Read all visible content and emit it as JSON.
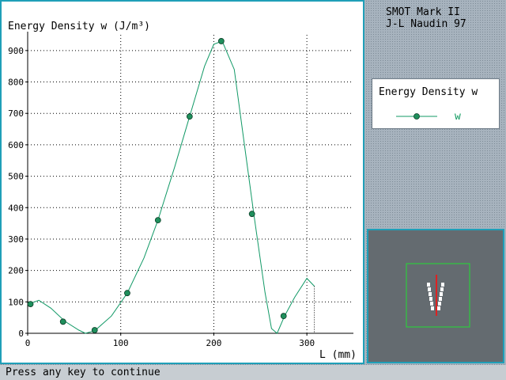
{
  "window": {
    "header_line1": "SMOT Mark II",
    "header_line2": "J-L Naudin 97",
    "status_text": "Press any key to continue"
  },
  "legend": {
    "title": "Energy Density w",
    "series_label": "w"
  },
  "colors": {
    "series": "#119966",
    "marker_fill": "#1f8f5c",
    "panel_border": "#1f9fb8",
    "mini_box": "#22dd33",
    "needle": "#dd2222"
  },
  "chart_data": {
    "type": "line",
    "title": "Energy Density w (J/m³)",
    "xlabel": "L (mm)",
    "ylabel": "",
    "xlim": [
      0,
      350
    ],
    "ylim": [
      0,
      950
    ],
    "x_ticks": [
      0,
      100,
      200,
      300
    ],
    "y_ticks": [
      0,
      100,
      200,
      300,
      400,
      500,
      600,
      700,
      800,
      900
    ],
    "grid": true,
    "line": {
      "x": [
        0,
        12,
        25,
        40,
        55,
        62,
        72,
        90,
        107,
        125,
        140,
        158,
        174,
        190,
        200,
        209,
        222,
        232,
        243,
        255,
        262,
        268,
        276,
        287,
        300,
        308
      ],
      "y": [
        92,
        105,
        80,
        38,
        10,
        0,
        8,
        55,
        128,
        240,
        360,
        530,
        690,
        850,
        920,
        930,
        840,
        620,
        380,
        130,
        15,
        0,
        55,
        115,
        175,
        150
      ]
    },
    "markers": {
      "x": [
        3,
        38,
        72,
        107,
        140,
        174,
        208,
        241,
        275
      ],
      "y": [
        93,
        37,
        10,
        128,
        360,
        690,
        930,
        380,
        55
      ]
    },
    "end_drop_x": 308
  }
}
